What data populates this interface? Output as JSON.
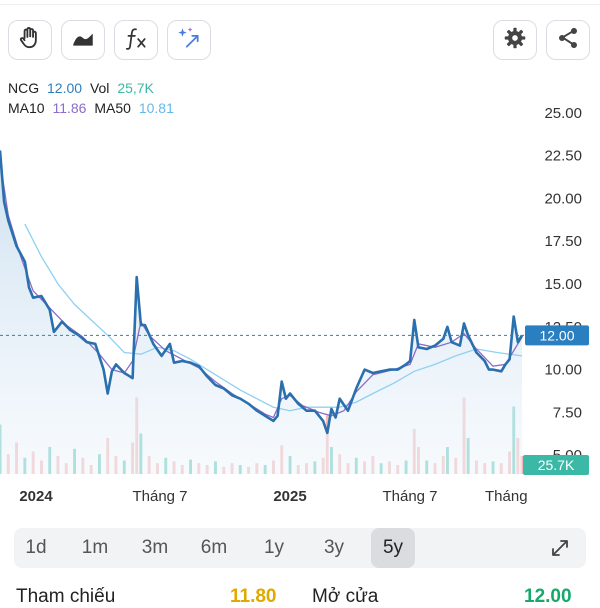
{
  "toolbar": {
    "left_buttons": [
      "hand-icon",
      "area-chart-icon",
      "fx-icon",
      "magic-icon"
    ],
    "right_buttons": [
      "gear-icon",
      "share-icon"
    ]
  },
  "legend": {
    "symbol": "NCG",
    "price": "12.00",
    "vol_label": "Vol",
    "vol": "25,7K",
    "ma10_label": "MA10",
    "ma10": "11.86",
    "ma50_label": "MA50",
    "ma50": "10.81"
  },
  "periods": {
    "items": [
      "1d",
      "1m",
      "3m",
      "6m",
      "1y",
      "3y",
      "5y"
    ],
    "active": "5y"
  },
  "bottom": {
    "left_label": "Tham chiếu",
    "left_value": "11.80",
    "right_label": "Mở cửa",
    "right_value": "12.00"
  },
  "colors": {
    "price": "#2a6fae",
    "ma10": "#8c6cc8",
    "ma50": "#8fd0f2",
    "up": "#3cb8a6",
    "down": "#f0a3a3",
    "current": "#2a7fc0"
  },
  "chart_data": {
    "type": "line",
    "x_ticks": [
      "2024",
      "Tháng 7",
      "2025",
      "Tháng 7",
      "Tháng"
    ],
    "y_ticks": [
      "25.00",
      "22.50",
      "20.00",
      "17.50",
      "15.00",
      "12.50",
      "10.00",
      "7.50",
      "5.00"
    ],
    "ylim": [
      3.9,
      27.5
    ],
    "current_price": "12.00",
    "current_volume": "25.7K",
    "price": [
      [
        0,
        22.8
      ],
      [
        1,
        19.8
      ],
      [
        2,
        18.7
      ],
      [
        4,
        17.2
      ],
      [
        6,
        16.3
      ],
      [
        7,
        14.8
      ],
      [
        8,
        14.2
      ],
      [
        10,
        14.3
      ],
      [
        12,
        13.5
      ],
      [
        13,
        12.2
      ],
      [
        15,
        12.8
      ],
      [
        17,
        12.3
      ],
      [
        19,
        12.0
      ],
      [
        21,
        11.6
      ],
      [
        23,
        11.5
      ],
      [
        25,
        10.0
      ],
      [
        26,
        8.6
      ],
      [
        27,
        9.9
      ],
      [
        28,
        10.3
      ],
      [
        30,
        9.8
      ],
      [
        32,
        9.5
      ],
      [
        33,
        15.4
      ],
      [
        34,
        12.6
      ],
      [
        35,
        12.6
      ],
      [
        37,
        11.5
      ],
      [
        39,
        10.8
      ],
      [
        41,
        11.5
      ],
      [
        42,
        10.4
      ],
      [
        44,
        10.5
      ],
      [
        46,
        10.4
      ],
      [
        48,
        10.2
      ],
      [
        50,
        9.6
      ],
      [
        52,
        9.1
      ],
      [
        54,
        8.9
      ],
      [
        56,
        8.5
      ],
      [
        58,
        8.3
      ],
      [
        60,
        8.0
      ],
      [
        62,
        7.6
      ],
      [
        64,
        7.3
      ],
      [
        66,
        7.0
      ],
      [
        67,
        7.3
      ],
      [
        68,
        9.3
      ],
      [
        69,
        8.3
      ],
      [
        70,
        8.6
      ],
      [
        72,
        8.0
      ],
      [
        74,
        7.6
      ],
      [
        76,
        7.6
      ],
      [
        78,
        7.0
      ],
      [
        79,
        6.3
      ],
      [
        80,
        7.7
      ],
      [
        81,
        7.2
      ],
      [
        82,
        8.3
      ],
      [
        84,
        7.6
      ],
      [
        86,
        8.9
      ],
      [
        88,
        10.0
      ],
      [
        90,
        9.8
      ],
      [
        92,
        9.9
      ],
      [
        94,
        10.0
      ],
      [
        96,
        10.0
      ],
      [
        98,
        10.3
      ],
      [
        99,
        10.5
      ],
      [
        100,
        12.9
      ],
      [
        101,
        11.3
      ],
      [
        103,
        11.2
      ],
      [
        105,
        11.4
      ],
      [
        107,
        11.8
      ],
      [
        108,
        12.5
      ],
      [
        109,
        11.6
      ],
      [
        111,
        11.4
      ],
      [
        112,
        12.7
      ],
      [
        113,
        12.0
      ],
      [
        115,
        11.0
      ],
      [
        117,
        10.5
      ],
      [
        118,
        10.0
      ],
      [
        119,
        10.0
      ],
      [
        121,
        9.9
      ],
      [
        122,
        10.3
      ],
      [
        123,
        10.6
      ],
      [
        124,
        13.1
      ],
      [
        125,
        11.6
      ],
      [
        126,
        12.0
      ]
    ],
    "ma10": [
      [
        0,
        22.2
      ],
      [
        2,
        19.0
      ],
      [
        5,
        16.6
      ],
      [
        8,
        14.6
      ],
      [
        12,
        13.6
      ],
      [
        16,
        12.6
      ],
      [
        20,
        11.9
      ],
      [
        24,
        10.9
      ],
      [
        27,
        10.0
      ],
      [
        30,
        9.8
      ],
      [
        32,
        10.5
      ],
      [
        34,
        12.8
      ],
      [
        36,
        12.0
      ],
      [
        40,
        11.1
      ],
      [
        44,
        10.6
      ],
      [
        48,
        10.1
      ],
      [
        52,
        9.3
      ],
      [
        56,
        8.6
      ],
      [
        60,
        8.0
      ],
      [
        64,
        7.4
      ],
      [
        66,
        7.2
      ],
      [
        68,
        8.3
      ],
      [
        70,
        8.5
      ],
      [
        73,
        7.9
      ],
      [
        77,
        7.5
      ],
      [
        80,
        7.3
      ],
      [
        83,
        7.6
      ],
      [
        86,
        8.7
      ],
      [
        90,
        9.7
      ],
      [
        95,
        10.0
      ],
      [
        99,
        10.3
      ],
      [
        101,
        11.5
      ],
      [
        105,
        11.3
      ],
      [
        109,
        11.6
      ],
      [
        112,
        12.1
      ],
      [
        115,
        11.2
      ],
      [
        119,
        10.2
      ],
      [
        122,
        10.3
      ],
      [
        126,
        11.9
      ]
    ],
    "ma50": [
      [
        6,
        18.5
      ],
      [
        10,
        16.6
      ],
      [
        14,
        15.0
      ],
      [
        18,
        13.8
      ],
      [
        22,
        12.9
      ],
      [
        26,
        12.0
      ],
      [
        30,
        11.0
      ],
      [
        34,
        10.9
      ],
      [
        38,
        11.3
      ],
      [
        42,
        11.1
      ],
      [
        46,
        10.6
      ],
      [
        50,
        10.0
      ],
      [
        54,
        9.4
      ],
      [
        58,
        8.8
      ],
      [
        62,
        8.3
      ],
      [
        66,
        7.8
      ],
      [
        70,
        7.6
      ],
      [
        74,
        7.8
      ],
      [
        78,
        7.8
      ],
      [
        82,
        7.8
      ],
      [
        86,
        8.1
      ],
      [
        90,
        8.6
      ],
      [
        95,
        9.2
      ],
      [
        100,
        9.9
      ],
      [
        105,
        10.3
      ],
      [
        110,
        10.8
      ],
      [
        115,
        11.2
      ],
      [
        120,
        11.0
      ],
      [
        126,
        10.8
      ]
    ],
    "volume": [
      [
        0,
        0.55
      ],
      [
        2,
        0.22
      ],
      [
        4,
        0.35
      ],
      [
        6,
        0.18
      ],
      [
        8,
        0.25
      ],
      [
        10,
        0.15
      ],
      [
        12,
        0.3
      ],
      [
        14,
        0.2
      ],
      [
        16,
        0.12
      ],
      [
        18,
        0.28
      ],
      [
        20,
        0.18
      ],
      [
        22,
        0.1
      ],
      [
        24,
        0.22
      ],
      [
        26,
        0.4
      ],
      [
        28,
        0.2
      ],
      [
        30,
        0.15
      ],
      [
        32,
        0.35
      ],
      [
        33,
        0.85
      ],
      [
        34,
        0.45
      ],
      [
        36,
        0.2
      ],
      [
        38,
        0.12
      ],
      [
        40,
        0.18
      ],
      [
        42,
        0.14
      ],
      [
        44,
        0.1
      ],
      [
        46,
        0.16
      ],
      [
        48,
        0.12
      ],
      [
        50,
        0.1
      ],
      [
        52,
        0.14
      ],
      [
        54,
        0.08
      ],
      [
        56,
        0.12
      ],
      [
        58,
        0.1
      ],
      [
        60,
        0.08
      ],
      [
        62,
        0.12
      ],
      [
        64,
        0.1
      ],
      [
        66,
        0.15
      ],
      [
        68,
        0.32
      ],
      [
        70,
        0.2
      ],
      [
        72,
        0.1
      ],
      [
        74,
        0.12
      ],
      [
        76,
        0.14
      ],
      [
        78,
        0.18
      ],
      [
        79,
        0.65
      ],
      [
        80,
        0.3
      ],
      [
        82,
        0.22
      ],
      [
        84,
        0.12
      ],
      [
        86,
        0.18
      ],
      [
        88,
        0.14
      ],
      [
        90,
        0.2
      ],
      [
        92,
        0.12
      ],
      [
        94,
        0.14
      ],
      [
        96,
        0.1
      ],
      [
        98,
        0.15
      ],
      [
        100,
        0.5
      ],
      [
        101,
        0.3
      ],
      [
        103,
        0.15
      ],
      [
        105,
        0.12
      ],
      [
        107,
        0.2
      ],
      [
        108,
        0.3
      ],
      [
        110,
        0.18
      ],
      [
        112,
        0.85
      ],
      [
        113,
        0.4
      ],
      [
        115,
        0.15
      ],
      [
        117,
        0.12
      ],
      [
        119,
        0.14
      ],
      [
        121,
        0.12
      ],
      [
        123,
        0.25
      ],
      [
        124,
        0.75
      ],
      [
        125,
        0.4
      ],
      [
        126,
        0.2
      ]
    ]
  }
}
